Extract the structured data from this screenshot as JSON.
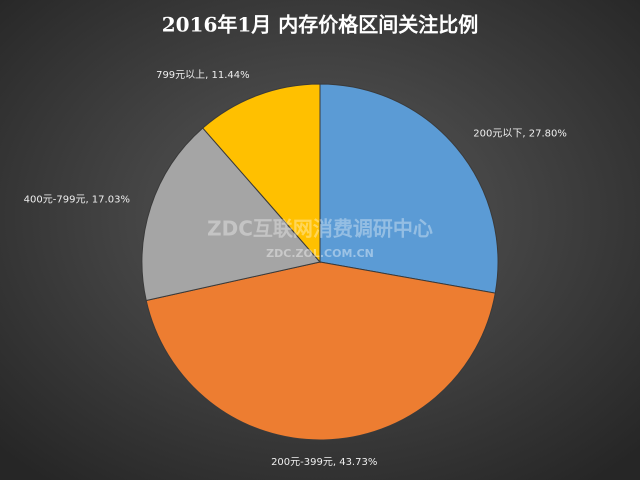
{
  "chart_data": {
    "type": "pie",
    "title": "2016年1月 内存价格区间关注比例",
    "values": [
      27.8,
      43.73,
      17.03,
      11.44
    ],
    "value_labels": [
      "200元以下, 27.80%",
      "200元-399元, 43.73%",
      "400元-799元, 17.03%",
      "799元以上, 11.44%"
    ],
    "colors": [
      "#5b9bd5",
      "#ed7d31",
      "#a5a5a5",
      "#ffc000"
    ],
    "watermark": [
      "ZDC互联网消费调研中心",
      "ZDC.ZOL.COM.CN"
    ]
  }
}
